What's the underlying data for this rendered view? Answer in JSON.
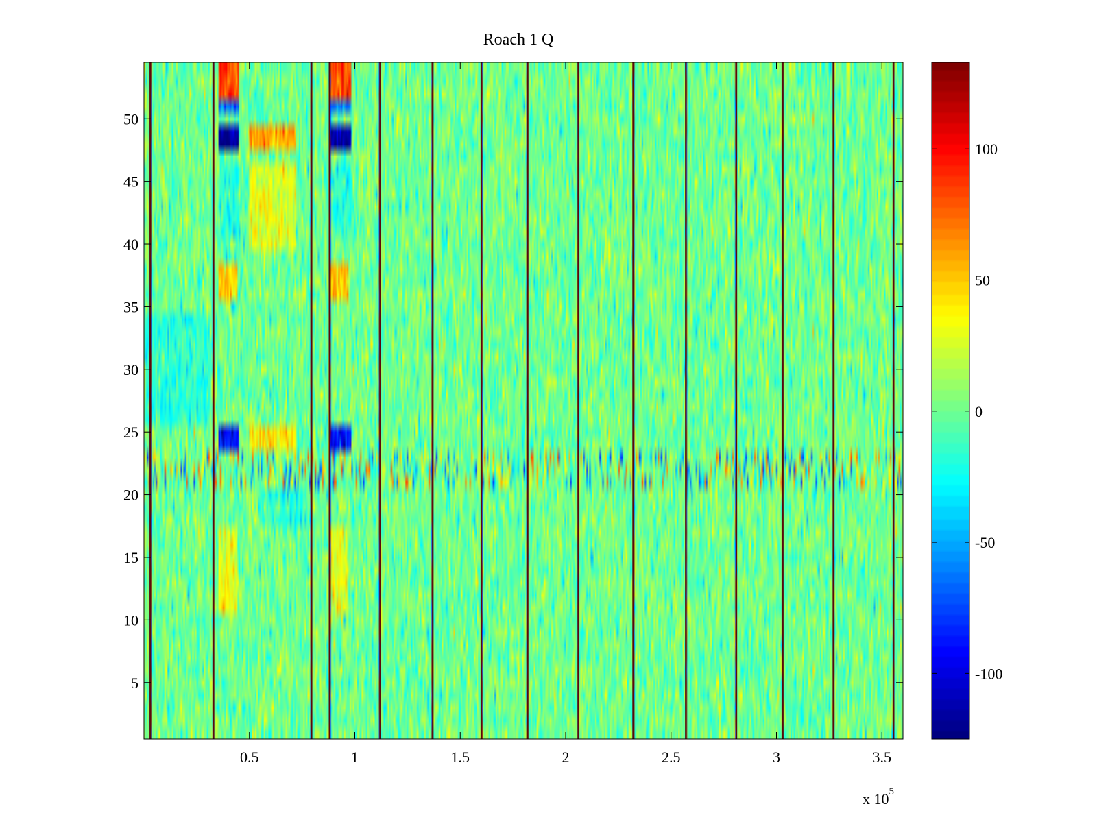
{
  "chart_data": {
    "type": "heatmap",
    "title": "Roach 1 Q",
    "xlabel": "",
    "ylabel": "",
    "x_range": [
      0,
      360000
    ],
    "y_range": [
      0.5,
      54.5
    ],
    "x_ticks": [
      {
        "value": 50000,
        "label": "0.5"
      },
      {
        "value": 100000,
        "label": "1"
      },
      {
        "value": 150000,
        "label": "1.5"
      },
      {
        "value": 200000,
        "label": "2"
      },
      {
        "value": 250000,
        "label": "2.5"
      },
      {
        "value": 300000,
        "label": "3"
      },
      {
        "value": 350000,
        "label": "3.5"
      }
    ],
    "x_multiplier_text": "x 10",
    "x_multiplier_exp": "5",
    "y_ticks": [
      {
        "value": 5,
        "label": "5"
      },
      {
        "value": 10,
        "label": "10"
      },
      {
        "value": 15,
        "label": "15"
      },
      {
        "value": 20,
        "label": "20"
      },
      {
        "value": 25,
        "label": "25"
      },
      {
        "value": 30,
        "label": "30"
      },
      {
        "value": 35,
        "label": "35"
      },
      {
        "value": 40,
        "label": "40"
      },
      {
        "value": 45,
        "label": "45"
      },
      {
        "value": 50,
        "label": "50"
      }
    ],
    "colormap": "jet",
    "color_range": [
      -125,
      133
    ],
    "colorbar_ticks": [
      {
        "value": 100,
        "label": "100"
      },
      {
        "value": 50,
        "label": "50"
      },
      {
        "value": 0,
        "label": "0"
      },
      {
        "value": -50,
        "label": "-50"
      },
      {
        "value": -100,
        "label": "-100"
      }
    ],
    "base_value": 0,
    "noise_amplitude": 14,
    "rows": 54,
    "columns": 520,
    "seed": 12345,
    "separator_lines_x": [
      3000,
      33000,
      79500,
      88000,
      112000,
      137000,
      160000,
      182000,
      206000,
      232000,
      257000,
      281000,
      303000,
      327000,
      355500
    ],
    "features": [
      {
        "x0": 35000,
        "x1": 45000,
        "y0": 47.5,
        "y1": 49.5,
        "value": -120
      },
      {
        "x0": 88500,
        "x1": 98500,
        "y0": 47.5,
        "y1": 49.5,
        "value": -120
      },
      {
        "x0": 35000,
        "x1": 45000,
        "y0": 23.5,
        "y1": 25.5,
        "value": -95
      },
      {
        "x0": 88500,
        "x1": 98500,
        "y0": 23.5,
        "y1": 25.5,
        "value": -90
      },
      {
        "x0": 35000,
        "x1": 45000,
        "y0": 50.5,
        "y1": 51.5,
        "value": -65
      },
      {
        "x0": 88500,
        "x1": 98500,
        "y0": 50.5,
        "y1": 51.5,
        "value": -60
      },
      {
        "x0": 50000,
        "x1": 72000,
        "y0": 47.5,
        "y1": 49.5,
        "value": 60
      },
      {
        "x0": 50000,
        "x1": 72000,
        "y0": 23.5,
        "y1": 25.5,
        "value": 40
      },
      {
        "x0": 50000,
        "x1": 72000,
        "y0": 39.5,
        "y1": 46.5,
        "value": 30
      },
      {
        "x0": 35000,
        "x1": 45000,
        "y0": 51.5,
        "y1": 54.5,
        "value": 85
      },
      {
        "x0": 88500,
        "x1": 98500,
        "y0": 51.5,
        "y1": 54.5,
        "value": 85
      },
      {
        "x0": 35000,
        "x1": 44000,
        "y0": 35.5,
        "y1": 38.5,
        "value": 50
      },
      {
        "x0": 88500,
        "x1": 97000,
        "y0": 35.5,
        "y1": 38.5,
        "value": 50
      },
      {
        "x0": 35000,
        "x1": 44000,
        "y0": 10.5,
        "y1": 17.5,
        "value": 32
      },
      {
        "x0": 88500,
        "x1": 97000,
        "y0": 10.5,
        "y1": 17.5,
        "value": 30
      },
      {
        "x0": 36000,
        "x1": 45000,
        "y0": 40.5,
        "y1": 46.5,
        "value": -20
      },
      {
        "x0": 89000,
        "x1": 98000,
        "y0": 40.5,
        "y1": 46.5,
        "value": -20
      },
      {
        "x0": 1000,
        "x1": 31000,
        "y0": 25.5,
        "y1": 34.5,
        "value": -18
      },
      {
        "x0": 55000,
        "x1": 78000,
        "y0": 17.5,
        "y1": 20.5,
        "value": -18
      }
    ],
    "noisy_band": {
      "y0": 20.5,
      "y1": 23.5,
      "amplitude": 85
    }
  }
}
